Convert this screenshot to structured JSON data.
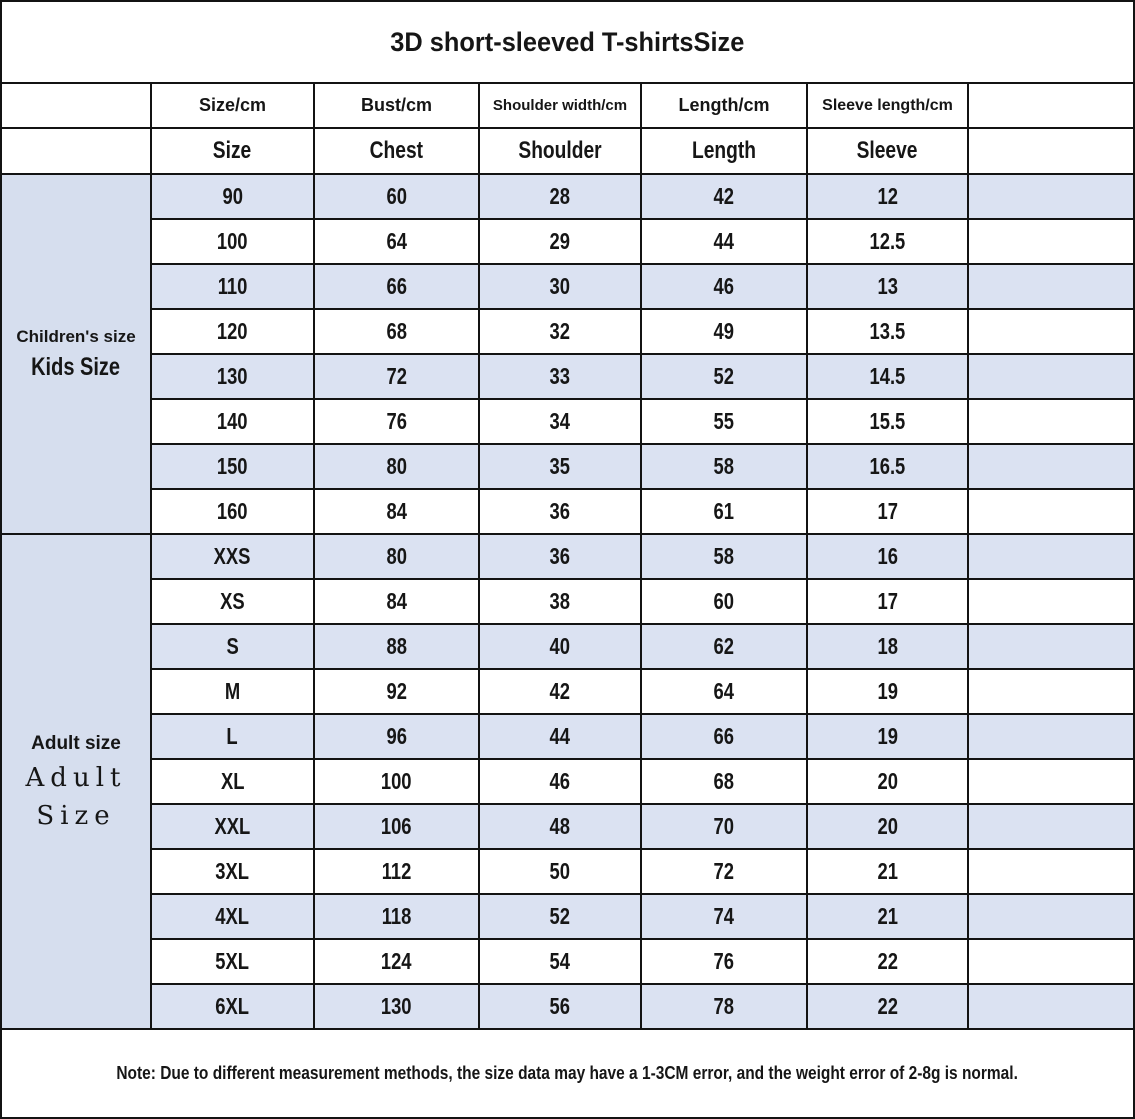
{
  "title": "3D short-sleeved T-shirtsSize",
  "colors": {
    "stripe": "#dbe2f2",
    "label_bg": "#d6deee",
    "border": "#131313",
    "text": "#161616"
  },
  "table": {
    "header_row1": [
      "Size/cm",
      "Bust/cm",
      "Shoulder width/cm",
      "Length/cm",
      "Sleeve length/cm"
    ],
    "header_row2": [
      "Size",
      "Chest",
      "Shoulder",
      "Length",
      "Sleeve"
    ],
    "kids_section": {
      "label_en": "Children's size",
      "label_sub": "Kids Size",
      "rows": [
        {
          "size": "90",
          "chest": "60",
          "shoulder": "28",
          "length": "42",
          "sleeve": "12"
        },
        {
          "size": "100",
          "chest": "64",
          "shoulder": "29",
          "length": "44",
          "sleeve": "12.5"
        },
        {
          "size": "110",
          "chest": "66",
          "shoulder": "30",
          "length": "46",
          "sleeve": "13"
        },
        {
          "size": "120",
          "chest": "68",
          "shoulder": "32",
          "length": "49",
          "sleeve": "13.5"
        },
        {
          "size": "130",
          "chest": "72",
          "shoulder": "33",
          "length": "52",
          "sleeve": "14.5"
        },
        {
          "size": "140",
          "chest": "76",
          "shoulder": "34",
          "length": "55",
          "sleeve": "15.5"
        },
        {
          "size": "150",
          "chest": "80",
          "shoulder": "35",
          "length": "58",
          "sleeve": "16.5"
        },
        {
          "size": "160",
          "chest": "84",
          "shoulder": "36",
          "length": "61",
          "sleeve": "17"
        }
      ]
    },
    "adult_section": {
      "label_en": "Adult size",
      "label_sub_line1": "Adult",
      "label_sub_line2": "Size",
      "rows": [
        {
          "size": "XXS",
          "chest": "80",
          "shoulder": "36",
          "length": "58",
          "sleeve": "16"
        },
        {
          "size": "XS",
          "chest": "84",
          "shoulder": "38",
          "length": "60",
          "sleeve": "17"
        },
        {
          "size": "S",
          "chest": "88",
          "shoulder": "40",
          "length": "62",
          "sleeve": "18"
        },
        {
          "size": "M",
          "chest": "92",
          "shoulder": "42",
          "length": "64",
          "sleeve": "19"
        },
        {
          "size": "L",
          "chest": "96",
          "shoulder": "44",
          "length": "66",
          "sleeve": "19"
        },
        {
          "size": "XL",
          "chest": "100",
          "shoulder": "46",
          "length": "68",
          "sleeve": "20"
        },
        {
          "size": "XXL",
          "chest": "106",
          "shoulder": "48",
          "length": "70",
          "sleeve": "20"
        },
        {
          "size": "3XL",
          "chest": "112",
          "shoulder": "50",
          "length": "72",
          "sleeve": "21"
        },
        {
          "size": "4XL",
          "chest": "118",
          "shoulder": "52",
          "length": "74",
          "sleeve": "21"
        },
        {
          "size": "5XL",
          "chest": "124",
          "shoulder": "54",
          "length": "76",
          "sleeve": "22"
        },
        {
          "size": "6XL",
          "chest": "130",
          "shoulder": "56",
          "length": "78",
          "sleeve": "22"
        }
      ]
    }
  },
  "note": "Note: Due to different measurement methods, the size data may have a 1-3CM error, and the weight error of 2-8g is normal."
}
